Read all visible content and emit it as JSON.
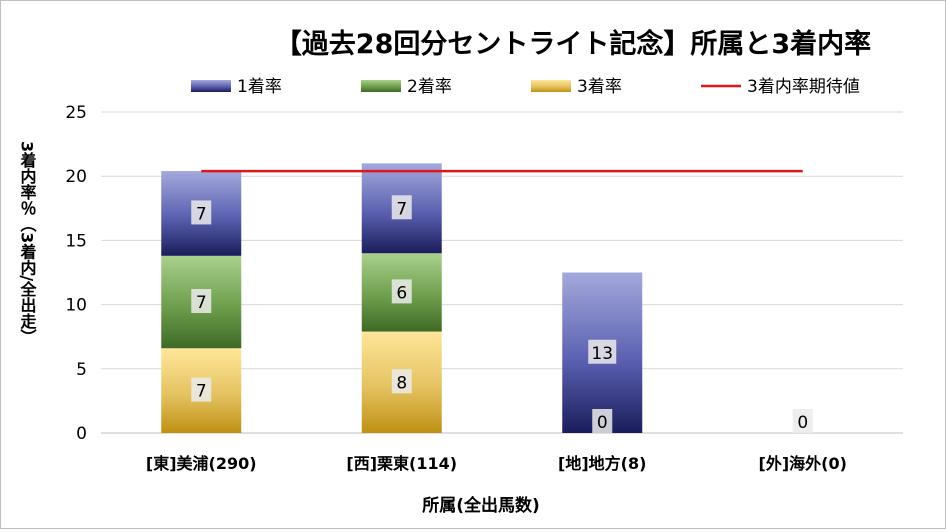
{
  "chart_data": {
    "type": "bar",
    "stacked": true,
    "title": "【過去28回分セントライト記念】所属と3着内率",
    "xlabel": "所属(全出馬数)",
    "ylabel": "3着内率％（3着内/全出走）",
    "ylim": [
      0,
      25
    ],
    "yticks": [
      "0",
      "5",
      "10",
      "15",
      "20",
      "25"
    ],
    "grid": true,
    "legend_position": "top",
    "categories": [
      "[東]美浦(290)",
      "[西]栗東(114)",
      "[地]地方(8)",
      "[外]海外(0)"
    ],
    "series": [
      {
        "name": "3着率",
        "values": [
          6.6,
          7.9,
          0,
          0
        ],
        "labels": [
          "7",
          "8",
          "",
          ""
        ],
        "color": "#c9a227"
      },
      {
        "name": "2着率",
        "values": [
          7.2,
          6.1,
          0,
          0
        ],
        "labels": [
          "7",
          "6",
          "0",
          ""
        ],
        "color": "#5a8a3a"
      },
      {
        "name": "1着率",
        "values": [
          6.6,
          7.0,
          12.5,
          0
        ],
        "labels": [
          "7",
          "7",
          "13",
          "0"
        ],
        "color": "#2e3384"
      }
    ],
    "legend_order": [
      "1着率",
      "2着率",
      "3着率",
      "3着内率期待値"
    ],
    "expected_line": {
      "name": "3着内率期待値",
      "value": 20.4,
      "color": "#e0161c"
    }
  }
}
